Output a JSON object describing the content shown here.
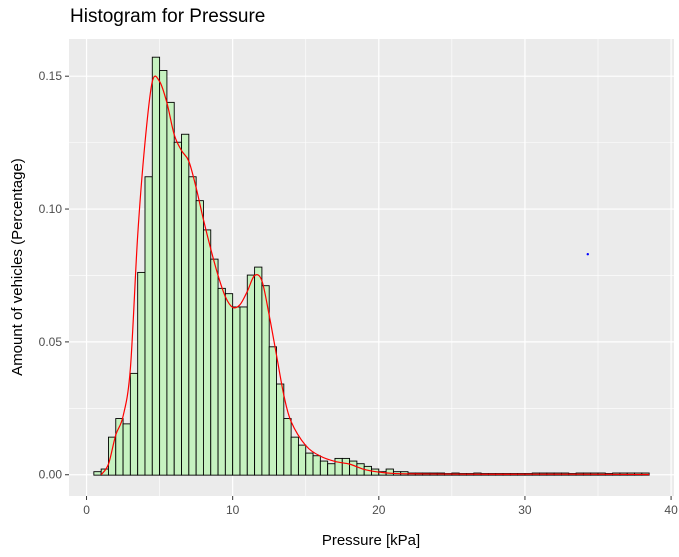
{
  "chart_data": {
    "type": "bar",
    "title": "Histogram for Pressure",
    "xlabel": "Pressure [kPa]",
    "ylabel": "Amount of vehicles (Percentage)",
    "xlim": [
      -1.2,
      40.2
    ],
    "ylim": [
      -0.008,
      0.164
    ],
    "x_ticks": [
      0,
      10,
      20,
      30,
      40
    ],
    "x_tick_labels": [
      "0",
      "10",
      "20",
      "30",
      "40"
    ],
    "y_ticks": [
      0.0,
      0.05,
      0.1,
      0.15
    ],
    "y_tick_labels": [
      "0.00",
      "0.05",
      "0.10",
      "0.15"
    ],
    "grid": true,
    "bin_width": 0.5,
    "bin_start": 0.5,
    "bin_values": [
      0.001,
      0.002,
      0.014,
      0.021,
      0.019,
      0.038,
      0.076,
      0.112,
      0.157,
      0.152,
      0.14,
      0.125,
      0.128,
      0.112,
      0.103,
      0.092,
      0.081,
      0.07,
      0.068,
      0.063,
      0.063,
      0.075,
      0.078,
      0.071,
      0.048,
      0.034,
      0.021,
      0.014,
      0.011,
      0.008,
      0.007,
      0.005,
      0.004,
      0.006,
      0.006,
      0.005,
      0.004,
      0.003,
      0.002,
      0.001,
      0.002,
      0.001,
      0.001,
      0.0005,
      0.0005,
      0.0005,
      0.0005,
      0.0005,
      0.0003,
      0.0005,
      0.0003,
      0.0003,
      0.0005,
      0.0003,
      0.0003,
      0.0003,
      0.0003,
      0.0003,
      0.0003,
      0.0003,
      0.0005,
      0.0005,
      0.0005,
      0.0005,
      0.0005,
      0.0003,
      0.0005,
      0.0005,
      0.0005,
      0.0005,
      0.0003,
      0.0005,
      0.0005,
      0.0005,
      0.0005,
      0.0005
    ],
    "density_curve": {
      "x": [
        1.0,
        1.5,
        2.0,
        2.5,
        3.0,
        3.5,
        4.0,
        4.5,
        5.0,
        5.5,
        6.0,
        6.5,
        7.0,
        7.5,
        8.0,
        8.5,
        9.0,
        9.5,
        10.0,
        10.5,
        11.0,
        11.5,
        12.0,
        12.5,
        13.0,
        13.5,
        14.0,
        15.0,
        16.0,
        17.0,
        18.0,
        19.0,
        20.0,
        21.0,
        23.0,
        26.0,
        30.0,
        34.0,
        38.5
      ],
      "y": [
        0.0,
        0.004,
        0.015,
        0.022,
        0.04,
        0.09,
        0.125,
        0.148,
        0.148,
        0.14,
        0.128,
        0.122,
        0.118,
        0.108,
        0.096,
        0.085,
        0.075,
        0.067,
        0.063,
        0.064,
        0.069,
        0.075,
        0.073,
        0.06,
        0.045,
        0.03,
        0.02,
        0.011,
        0.007,
        0.005,
        0.004,
        0.002,
        0.001,
        0.0005,
        0.0003,
        0.0002,
        0.0002,
        0.0002,
        0.0001
      ]
    },
    "colors": {
      "panel_background": "#ebebeb",
      "grid_major": "#ffffff",
      "bar_fill": "#c6f2c0",
      "bar_edge": "#000000",
      "density_line": "#ff0000",
      "stray_point": "#0000ff"
    },
    "stray_point": {
      "x": 34.3,
      "y": 0.083
    }
  }
}
